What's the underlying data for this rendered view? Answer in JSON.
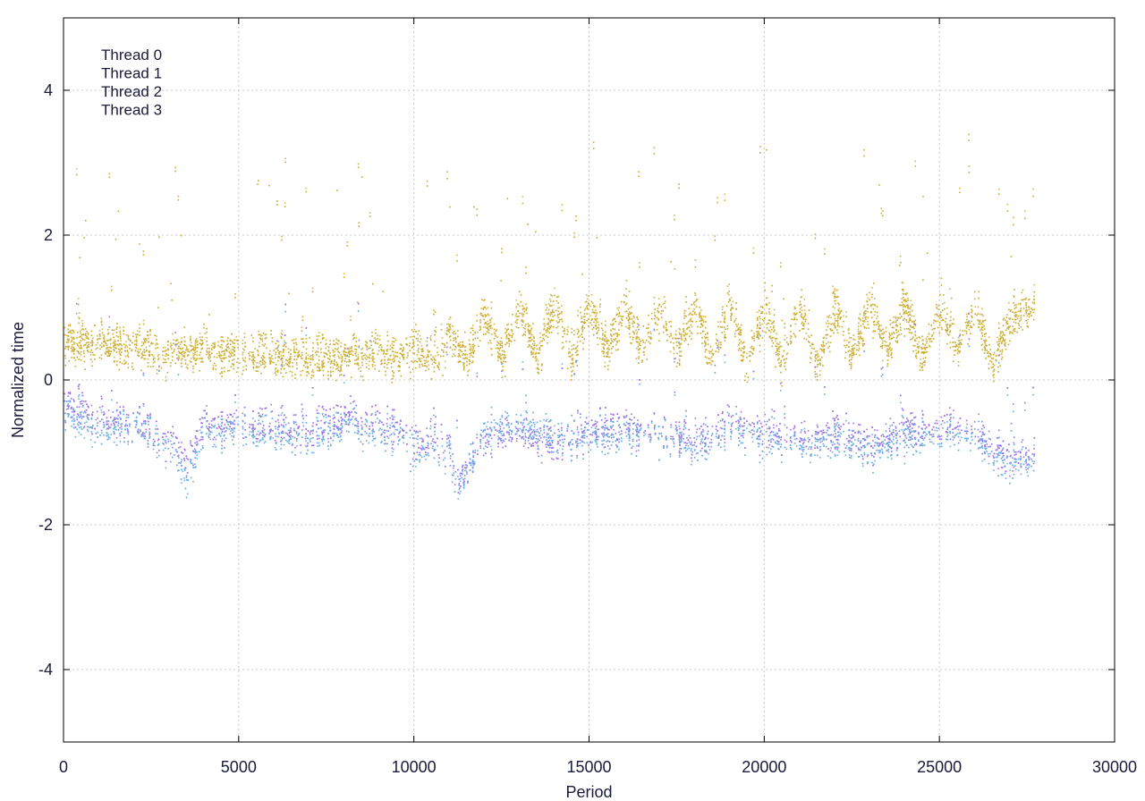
{
  "chart_data": {
    "type": "scatter",
    "title": "",
    "xlabel": "Period",
    "ylabel": "Normalized time",
    "xlim": [
      0,
      30000
    ],
    "ylim": [
      -5,
      5
    ],
    "x_ticks": [
      0,
      5000,
      10000,
      15000,
      20000,
      25000,
      30000
    ],
    "y_ticks": [
      -4,
      -2,
      0,
      2,
      4
    ],
    "x_tick_labels": [
      "0",
      "5000",
      "10000",
      "15000",
      "20000",
      "25000",
      "30000"
    ],
    "y_tick_labels": [
      "-4",
      "-2",
      "0",
      "2",
      "4"
    ],
    "grid": true,
    "legend_position": "top-left",
    "series": [
      {
        "name": "Thread 0",
        "color": "#9b72e8",
        "group": "lower",
        "x": [
          0,
          1000,
          2000,
          3000,
          3500,
          4000,
          5000,
          6000,
          7000,
          8000,
          9000,
          10000,
          11000,
          11200,
          12000,
          13000,
          14000,
          15000,
          16000,
          17000,
          18000,
          19000,
          20000,
          21000,
          22000,
          23000,
          24000,
          25000,
          26000,
          27000,
          27700
        ],
        "y": [
          -0.3,
          -0.5,
          -0.6,
          -0.8,
          -1.1,
          -0.6,
          -0.6,
          -0.6,
          -0.7,
          -0.5,
          -0.6,
          -0.8,
          -0.9,
          -1.4,
          -0.8,
          -0.7,
          -0.9,
          -0.7,
          -0.6,
          -0.7,
          -0.8,
          -0.6,
          -0.7,
          -0.8,
          -0.7,
          -0.9,
          -0.7,
          -0.6,
          -0.7,
          -1.1,
          -1.0
        ]
      },
      {
        "name": "Thread 1",
        "color": "#6aafe6",
        "group": "lower",
        "x": [
          0,
          1000,
          2000,
          3000,
          3500,
          4000,
          5000,
          6000,
          7000,
          8000,
          9000,
          10000,
          11000,
          11200,
          12000,
          13000,
          14000,
          15000,
          16000,
          17000,
          18000,
          19000,
          20000,
          21000,
          22000,
          23000,
          24000,
          25000,
          26000,
          27000,
          27700
        ],
        "y": [
          -0.4,
          -0.7,
          -0.6,
          -0.9,
          -1.4,
          -0.7,
          -0.7,
          -0.7,
          -0.8,
          -0.6,
          -0.7,
          -0.9,
          -1.0,
          -1.5,
          -0.7,
          -0.6,
          -0.8,
          -0.8,
          -0.7,
          -0.7,
          -0.9,
          -0.7,
          -0.8,
          -0.9,
          -0.8,
          -1.0,
          -0.8,
          -0.7,
          -0.8,
          -1.2,
          -1.1
        ]
      },
      {
        "name": "Thread 2",
        "color": "#c9a826",
        "group": "upper",
        "x": [
          0,
          1000,
          2000,
          3000,
          4000,
          5000,
          6000,
          7000,
          8000,
          9000,
          9500,
          10000,
          10500,
          11000,
          11500,
          12000,
          12500,
          13000,
          13500,
          14000,
          14500,
          15000,
          15500,
          16000,
          16500,
          17000,
          17500,
          18000,
          18500,
          19000,
          19500,
          20000,
          20500,
          21000,
          21500,
          22000,
          22500,
          23000,
          23500,
          24000,
          24500,
          25000,
          25500,
          26000,
          26500,
          27000,
          27700
        ],
        "y": [
          0.5,
          0.5,
          0.45,
          0.35,
          0.4,
          0.35,
          0.35,
          0.3,
          0.3,
          0.4,
          0.2,
          0.5,
          0.2,
          0.6,
          0.3,
          0.9,
          0.3,
          1.0,
          0.3,
          1.0,
          0.3,
          1.0,
          0.4,
          1.0,
          0.4,
          1.0,
          0.4,
          1.0,
          0.3,
          1.0,
          0.2,
          1.0,
          0.2,
          1.0,
          0.2,
          1.0,
          0.3,
          1.0,
          0.4,
          1.0,
          0.3,
          1.0,
          0.4,
          1.0,
          0.2,
          0.8,
          1.0
        ]
      },
      {
        "name": "Thread 3",
        "color": "#d4b84a",
        "group": "upper",
        "x": [
          0,
          1000,
          2000,
          3000,
          4000,
          5000,
          6000,
          7000,
          8000,
          9000,
          9500,
          10000,
          10500,
          11000,
          11500,
          12000,
          12500,
          13000,
          13500,
          14000,
          14500,
          15000,
          15500,
          16000,
          16500,
          17000,
          17500,
          18000,
          18500,
          19000,
          19500,
          20000,
          20500,
          21000,
          21500,
          22000,
          22500,
          23000,
          23500,
          24000,
          24500,
          25000,
          25500,
          26000,
          26500,
          27000,
          27700
        ],
        "y": [
          0.6,
          0.55,
          0.5,
          0.4,
          0.45,
          0.4,
          0.4,
          0.35,
          0.35,
          0.45,
          0.25,
          0.6,
          0.25,
          0.7,
          0.35,
          1.0,
          0.35,
          1.1,
          0.35,
          1.1,
          0.35,
          1.1,
          0.45,
          1.1,
          0.45,
          1.1,
          0.45,
          1.1,
          0.35,
          1.1,
          0.25,
          1.1,
          0.25,
          1.1,
          0.25,
          1.1,
          0.35,
          1.1,
          0.45,
          1.1,
          0.35,
          1.1,
          0.45,
          1.1,
          0.25,
          0.9,
          1.1
        ]
      }
    ]
  }
}
